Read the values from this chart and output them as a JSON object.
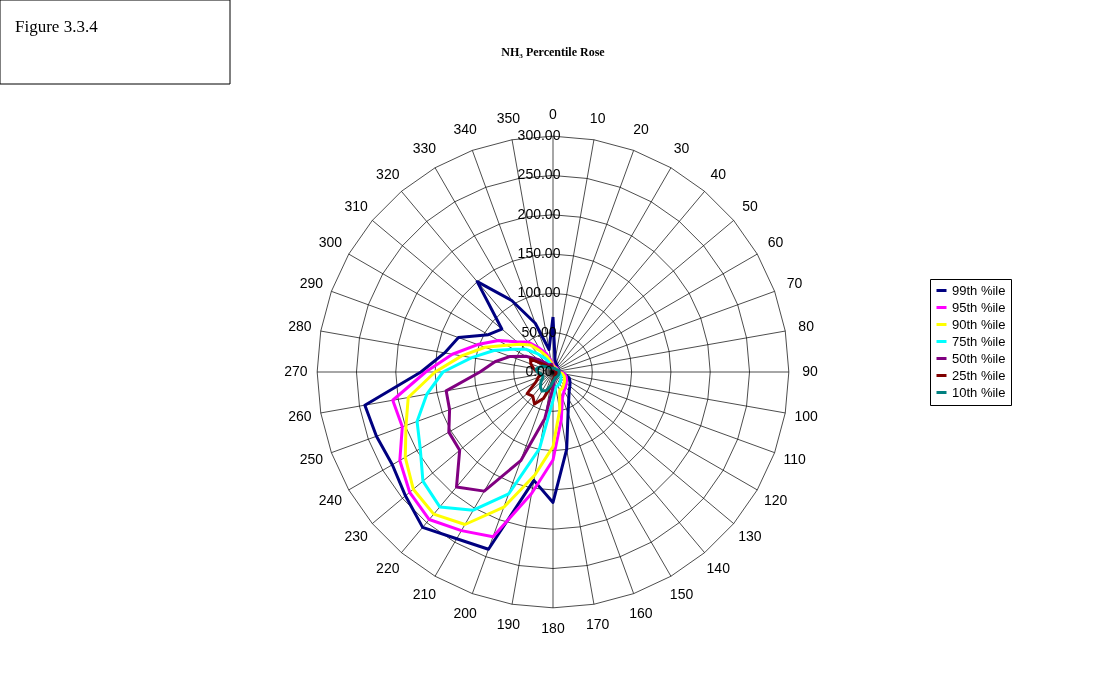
{
  "chart_data": {
    "type": "radar",
    "title": "NH₃ Percentile Rose",
    "annotations": [
      "Figure 3.3.4"
    ],
    "categories": [
      "0",
      "10",
      "20",
      "30",
      "40",
      "50",
      "60",
      "70",
      "80",
      "90",
      "100",
      "110",
      "120",
      "130",
      "140",
      "150",
      "160",
      "170",
      "180",
      "190",
      "200",
      "210",
      "220",
      "230",
      "240",
      "250",
      "260",
      "270",
      "280",
      "290",
      "300",
      "310",
      "320",
      "330",
      "340",
      "350"
    ],
    "ylim": [
      0,
      300
    ],
    "yticks": [
      {
        "value": 0,
        "label": "0.00"
      },
      {
        "value": 50,
        "label": "50.00"
      },
      {
        "value": 100,
        "label": "100.00"
      },
      {
        "value": 150,
        "label": "150.00"
      },
      {
        "value": 200,
        "label": "200.00"
      },
      {
        "value": 250,
        "label": "250.00"
      },
      {
        "value": 300,
        "label": "300.00"
      }
    ],
    "grid": true,
    "legend": "right",
    "series": [
      {
        "name": "99th %ile",
        "color": "#000080",
        "values": [
          70,
          15,
          12,
          10,
          8,
          8,
          8,
          8,
          8,
          10,
          15,
          22,
          25,
          28,
          32,
          40,
          56,
          100,
          166,
          140,
          240,
          245,
          258,
          245,
          236,
          239,
          243,
          168,
          140,
          128,
          95,
          85,
          150,
          105,
          66,
          29
        ]
      },
      {
        "name": "95th %ile",
        "color": "#ff00ff",
        "values": [
          10,
          8,
          7,
          7,
          7,
          7,
          7,
          7,
          7,
          10,
          15,
          18,
          20,
          22,
          25,
          28,
          35,
          61,
          112,
          157,
          223,
          233,
          245,
          238,
          225,
          204,
          207,
          162,
          130,
          102,
          80,
          60,
          50,
          35,
          25,
          15
        ]
      },
      {
        "name": "90th %ile",
        "color": "#ffff00",
        "values": [
          8,
          7,
          6,
          6,
          6,
          6,
          6,
          6,
          6,
          8,
          12,
          15,
          17,
          19,
          21,
          24,
          25,
          49,
          95,
          133,
          183,
          224,
          236,
          232,
          217,
          199,
          187,
          150,
          118,
          92,
          68,
          55,
          45,
          30,
          20,
          12
        ]
      },
      {
        "name": "75th %ile",
        "color": "#00ffff",
        "values": [
          5,
          5,
          5,
          5,
          5,
          5,
          5,
          5,
          5,
          6,
          8,
          10,
          12,
          13,
          15,
          17,
          18,
          20,
          36,
          99,
          165,
          203,
          224,
          216,
          195,
          184,
          163,
          140,
          105,
          80,
          58,
          45,
          30,
          20,
          12,
          8
        ]
      },
      {
        "name": "50th %ile",
        "color": "#800080",
        "values": [
          5,
          4,
          4,
          4,
          4,
          4,
          4,
          4,
          4,
          4,
          5,
          5,
          6,
          6,
          7,
          8,
          9,
          10,
          20,
          60,
          120,
          175,
          191,
          155,
          153,
          140,
          138,
          93,
          75,
          58,
          40,
          25,
          15,
          10,
          10,
          10
        ]
      },
      {
        "name": "25th %ile",
        "color": "#800000",
        "values": [
          5,
          4,
          4,
          4,
          4,
          4,
          4,
          4,
          4,
          4,
          4,
          4,
          5,
          5,
          5,
          6,
          6,
          8,
          10,
          20,
          36,
          47,
          40,
          43,
          25,
          20,
          15,
          20,
          25,
          30,
          33,
          15,
          8,
          8,
          8,
          6
        ]
      },
      {
        "name": "10th %ile",
        "color": "#008080",
        "values": [
          5,
          5,
          5,
          5,
          5,
          5,
          6,
          7,
          8,
          8,
          8,
          8,
          8,
          8,
          8,
          8,
          8,
          10,
          12,
          18,
          25,
          28,
          25,
          20,
          15,
          14,
          15,
          20,
          22,
          18,
          15,
          10,
          8,
          6,
          5,
          5
        ]
      }
    ]
  }
}
